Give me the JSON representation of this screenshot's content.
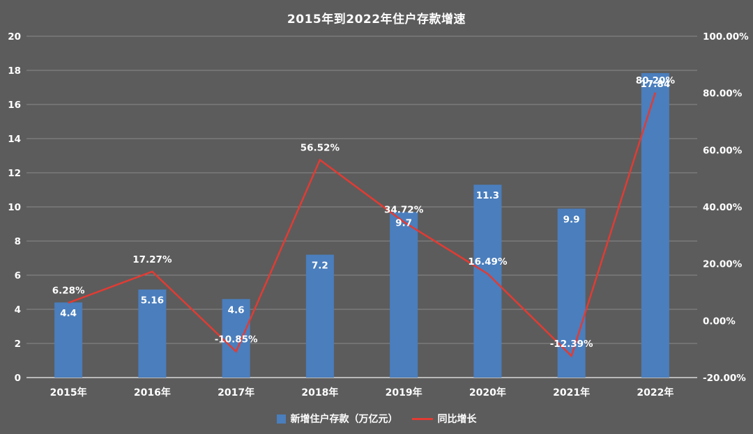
{
  "chart_data": {
    "type": "bar+line",
    "title": "2015年到2022年住户存款增速",
    "categories": [
      "2015年",
      "2016年",
      "2017年",
      "2018年",
      "2019年",
      "2020年",
      "2021年",
      "2022年"
    ],
    "series": [
      {
        "name": "新增住户存款（万亿元）",
        "type": "bar",
        "axis": "left",
        "values": [
          4.4,
          5.16,
          4.6,
          7.2,
          9.7,
          11.3,
          9.9,
          17.84
        ],
        "labels": [
          "4.4",
          "5.16",
          "4.6",
          "7.2",
          "9.7",
          "11.3",
          "9.9",
          "17.84"
        ]
      },
      {
        "name": "同比增长",
        "type": "line",
        "axis": "right",
        "values": [
          6.28,
          17.27,
          -10.85,
          56.52,
          34.72,
          16.49,
          -12.39,
          80.2
        ],
        "labels": [
          "6.28%",
          "17.27%",
          "-10.85%",
          "56.52%",
          "34.72%",
          "16.49%",
          "-12.39%",
          "80.20%"
        ]
      }
    ],
    "left_axis": {
      "min": 0,
      "max": 20,
      "step": 2,
      "tick_labels": [
        "0",
        "2",
        "4",
        "6",
        "8",
        "10",
        "12",
        "14",
        "16",
        "18",
        "20"
      ]
    },
    "right_axis": {
      "min": -20,
      "max": 100,
      "step": 20,
      "tick_labels": [
        "-20.00%",
        "0.00%",
        "20.00%",
        "40.00%",
        "60.00%",
        "80.00%",
        "100.00%"
      ]
    },
    "legend_position": "bottom",
    "grid": true,
    "style": {
      "background": "#5c5c5c",
      "bar_color": "#4a7ebd",
      "line_color": "#e23b33",
      "grid_color": "#8a8a8a",
      "axis_line_color": "#d9d9d9",
      "text_color": "#ffffff"
    }
  }
}
